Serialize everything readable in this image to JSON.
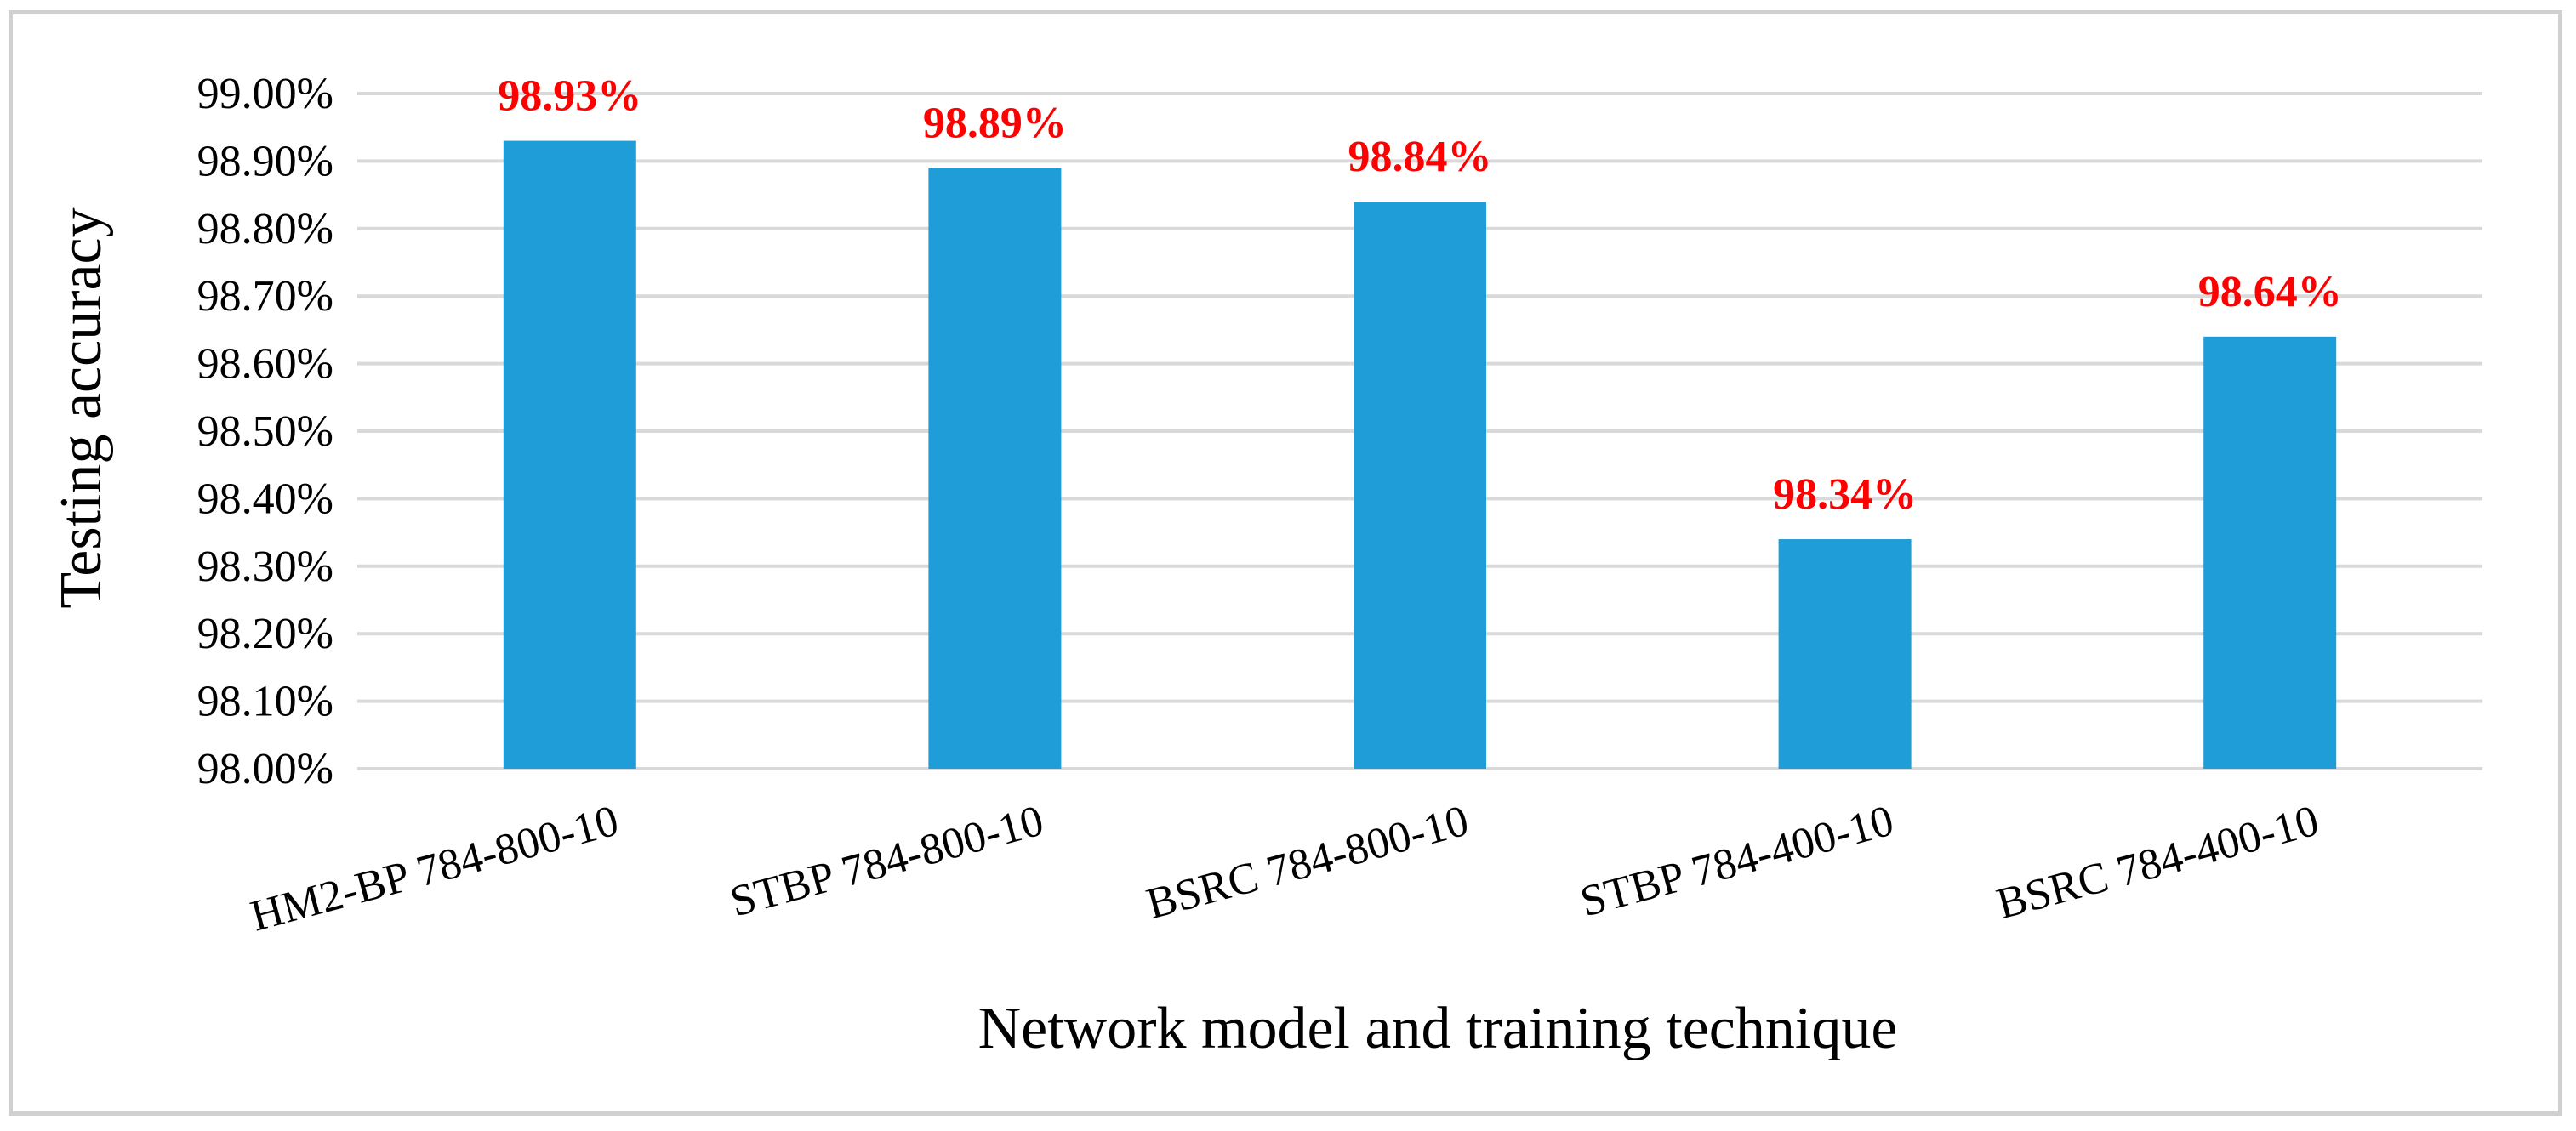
{
  "chart_data": {
    "type": "bar",
    "title": "",
    "xlabel": "Network model and training technique",
    "ylabel": "Testing accuracy",
    "categories": [
      "HM2-BP 784-800-10",
      "STBP 784-800-10",
      "BSRC 784-800-10",
      "STBP 784-400-10",
      "BSRC 784-400-10"
    ],
    "values": [
      98.93,
      98.89,
      98.84,
      98.34,
      98.64
    ],
    "data_labels": [
      "98.93%",
      "98.89%",
      "98.84%",
      "98.34%",
      "98.64%"
    ],
    "ylim": [
      98.0,
      99.0
    ],
    "yticks": [
      98.0,
      98.1,
      98.2,
      98.3,
      98.4,
      98.5,
      98.6,
      98.7,
      98.8,
      98.9,
      99.0
    ],
    "ytick_labels": [
      "98.00%",
      "98.10%",
      "98.20%",
      "98.30%",
      "98.40%",
      "98.50%",
      "98.60%",
      "98.70%",
      "98.80%",
      "98.90%",
      "99.00%"
    ],
    "grid": true,
    "legend": "none",
    "colors": {
      "bar": "#1f9dd9",
      "data_label": "#ff0000",
      "gridline": "#d9d9d9",
      "frame": "#d0d0d0"
    }
  }
}
